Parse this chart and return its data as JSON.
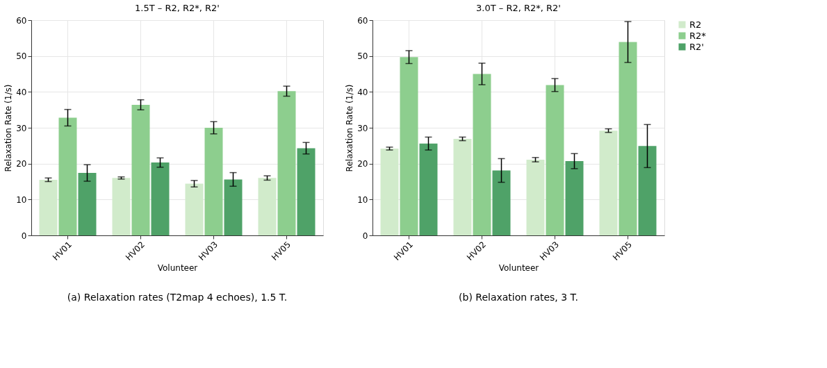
{
  "chart_data": [
    {
      "type": "bar",
      "title": "1.5T – R2, R2*, R2'",
      "xlabel": "Volunteer",
      "ylabel": "Relaxation Rate (1/s)",
      "categories": [
        "HV01",
        "HV02",
        "HV03",
        "HV05"
      ],
      "series": [
        {
          "name": "R2",
          "color": "#d1ebcb",
          "values": [
            15.5,
            16.0,
            14.4,
            16.0
          ],
          "errors": [
            0.5,
            0.3,
            0.9,
            0.6
          ]
        },
        {
          "name": "R2*",
          "color": "#8dce8e",
          "values": [
            32.8,
            36.4,
            30.0,
            40.2
          ],
          "errors": [
            2.3,
            1.4,
            1.7,
            1.4
          ]
        },
        {
          "name": "R2'",
          "color": "#4fa268",
          "values": [
            17.4,
            20.3,
            15.6,
            24.3
          ],
          "errors": [
            2.3,
            1.3,
            1.9,
            1.6
          ]
        }
      ],
      "ylim": [
        0,
        60
      ],
      "yticks": [
        0,
        10,
        20,
        30,
        40,
        50,
        60
      ],
      "grid": true,
      "legend": "right",
      "annotations": [
        "(a) Relaxation rates (T2map 4 echoes), 1.5 T."
      ]
    },
    {
      "type": "bar",
      "title": "3.0T – R2, R2*, R2'",
      "xlabel": "Volunteer",
      "ylabel": "Relaxation Rate (1/s)",
      "categories": [
        "HV01",
        "HV02",
        "HV03",
        "HV05"
      ],
      "series": [
        {
          "name": "R2",
          "color": "#d1ebcb",
          "values": [
            24.2,
            26.9,
            21.1,
            29.2
          ],
          "errors": [
            0.4,
            0.5,
            0.6,
            0.5
          ]
        },
        {
          "name": "R2*",
          "color": "#8dce8e",
          "values": [
            49.7,
            45.0,
            41.9,
            53.9
          ],
          "errors": [
            1.8,
            3.0,
            1.8,
            5.7
          ]
        },
        {
          "name": "R2'",
          "color": "#4fa268",
          "values": [
            25.6,
            18.1,
            20.7,
            24.9
          ],
          "errors": [
            1.8,
            3.3,
            2.1,
            6.0
          ]
        }
      ],
      "ylim": [
        0,
        60
      ],
      "yticks": [
        0,
        10,
        20,
        30,
        40,
        50,
        60
      ],
      "grid": true,
      "legend": "right",
      "annotations": [
        "(b) Relaxation rates, 3 T."
      ]
    }
  ]
}
